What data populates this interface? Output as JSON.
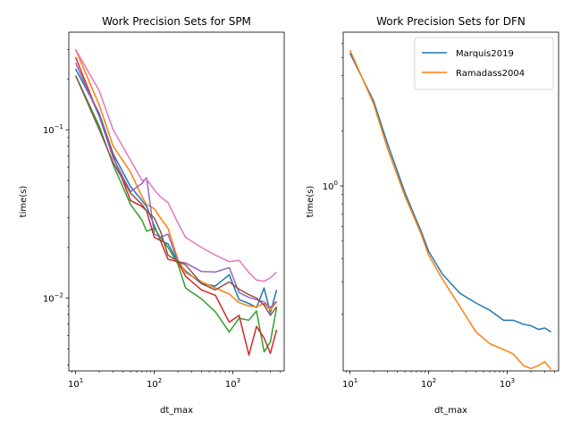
{
  "chart_data": [
    {
      "type": "line",
      "title": "Work Precision Sets for SPM",
      "xlabel": "dt_max",
      "ylabel": "time(s)",
      "xscale": "log",
      "yscale": "log",
      "xlim": [
        8.2,
        4500
      ],
      "ylim": [
        0.0037,
        0.38
      ],
      "xticks": [
        {
          "value": 10,
          "base": "10",
          "exp": "1"
        },
        {
          "value": 100,
          "base": "10",
          "exp": "2"
        },
        {
          "value": 1000,
          "base": "10",
          "exp": "3"
        }
      ],
      "yticks": [
        {
          "value": 0.01,
          "base": "10",
          "exp": "−2"
        },
        {
          "value": 0.1,
          "base": "10",
          "exp": "−1"
        }
      ],
      "x": [
        10,
        20,
        30,
        50,
        70,
        80,
        100,
        120,
        150,
        200,
        250,
        400,
        600,
        900,
        1200,
        1600,
        2000,
        2500,
        3000,
        3600
      ],
      "legend": null,
      "series": [
        {
          "color": "#1f77b4",
          "values": [
            0.23,
            0.125,
            0.072,
            0.046,
            0.038,
            0.035,
            0.027,
            0.022,
            0.021,
            0.0165,
            0.0145,
            0.0122,
            0.0118,
            0.0138,
            0.0098,
            0.0093,
            0.0088,
            0.0115,
            0.0082,
            0.0112
          ]
        },
        {
          "color": "#ff7f0e",
          "values": [
            0.3,
            0.14,
            0.08,
            0.056,
            0.04,
            0.036,
            0.034,
            0.03,
            0.026,
            0.017,
            0.0142,
            0.0125,
            0.0115,
            0.0106,
            0.0094,
            0.009,
            0.0089,
            0.0093,
            0.0085,
            0.0095
          ]
        },
        {
          "color": "#2ca02c",
          "values": [
            0.21,
            0.105,
            0.062,
            0.036,
            0.029,
            0.025,
            0.026,
            0.023,
            0.02,
            0.016,
            0.0115,
            0.0099,
            0.0083,
            0.0063,
            0.0076,
            0.0074,
            0.0084,
            0.0048,
            0.0055,
            0.0088
          ]
        },
        {
          "color": "#d62728",
          "values": [
            0.27,
            0.12,
            0.07,
            0.038,
            0.035,
            0.033,
            0.023,
            0.022,
            0.017,
            0.0165,
            0.0135,
            0.0112,
            0.0104,
            0.0072,
            0.0079,
            0.0046,
            0.0068,
            0.0058,
            0.0047,
            0.0065
          ]
        },
        {
          "color": "#9467bd",
          "values": [
            0.25,
            0.12,
            0.068,
            0.043,
            0.048,
            0.052,
            0.024,
            0.023,
            0.024,
            0.0165,
            0.0162,
            0.0144,
            0.0143,
            0.0152,
            0.0108,
            0.0101,
            0.0098,
            0.0095,
            0.0088,
            0.0096
          ]
        },
        {
          "color": "#8c564b",
          "values": [
            0.21,
            0.1,
            0.064,
            0.042,
            0.036,
            0.033,
            0.03,
            0.025,
            0.018,
            0.0165,
            0.0158,
            0.0122,
            0.0112,
            0.0125,
            0.0113,
            0.0105,
            0.01,
            0.0091,
            0.0079,
            0.0089
          ]
        },
        {
          "color": "#e377c2",
          "values": [
            0.3,
            0.17,
            0.1,
            0.066,
            0.05,
            0.051,
            0.044,
            0.04,
            0.037,
            0.028,
            0.023,
            0.02,
            0.018,
            0.0165,
            0.0168,
            0.0142,
            0.0128,
            0.0126,
            0.0132,
            0.0143
          ]
        }
      ]
    },
    {
      "type": "line",
      "title": "Work Precision Sets for DFN",
      "xlabel": "dt_max",
      "ylabel": "time(s)",
      "xscale": "log",
      "yscale": "log",
      "xlim": [
        8.2,
        4500
      ],
      "ylim": [
        0.098,
        6.9
      ],
      "xticks": [
        {
          "value": 10,
          "base": "10",
          "exp": "1"
        },
        {
          "value": 100,
          "base": "10",
          "exp": "2"
        },
        {
          "value": 1000,
          "base": "10",
          "exp": "3"
        }
      ],
      "yticks": [
        {
          "value": 1,
          "base": "10",
          "exp": "0"
        }
      ],
      "x": [
        10,
        20,
        30,
        50,
        70,
        80,
        100,
        150,
        250,
        400,
        600,
        900,
        1200,
        1600,
        2000,
        2500,
        3000,
        3600
      ],
      "legend": "top-right",
      "series": [
        {
          "name": "Marquis2019",
          "color": "#1f77b4",
          "values": [
            5.3,
            2.9,
            1.7,
            0.92,
            0.65,
            0.57,
            0.44,
            0.33,
            0.26,
            0.23,
            0.21,
            0.185,
            0.185,
            0.176,
            0.173,
            0.165,
            0.168,
            0.16
          ]
        },
        {
          "name": "Ramadass2004",
          "color": "#ff7f0e",
          "values": [
            5.5,
            2.8,
            1.6,
            0.88,
            0.63,
            0.55,
            0.42,
            0.31,
            0.22,
            0.16,
            0.138,
            0.128,
            0.121,
            0.105,
            0.101,
            0.105,
            0.11,
            0.1
          ]
        }
      ]
    }
  ]
}
